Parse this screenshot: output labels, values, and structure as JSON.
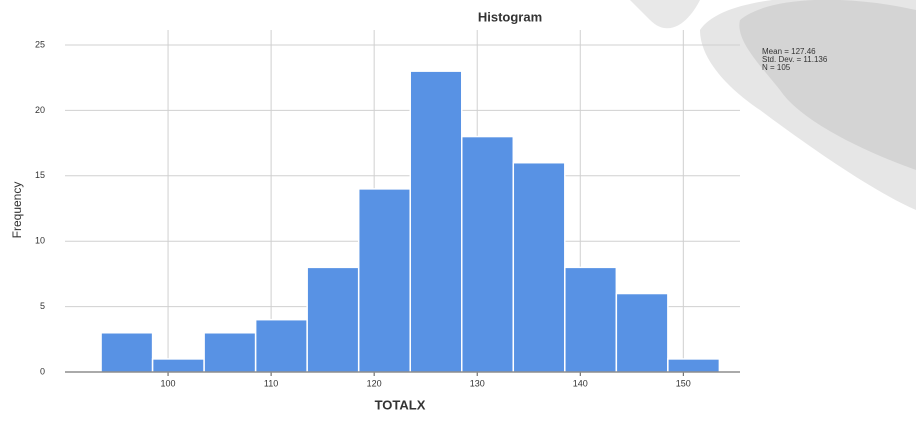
{
  "chart_data": {
    "type": "histogram",
    "title": "Histogram",
    "x_label": "TOTALX",
    "y_label": "Frequency",
    "bins": [
      93.5,
      98.5,
      103.5,
      108.5,
      113.5,
      118.5,
      123.5,
      128.5,
      133.5,
      138.5,
      143.5,
      148.5,
      153.5
    ],
    "counts": [
      3,
      1,
      3,
      4,
      8,
      14,
      23,
      18,
      16,
      8,
      6,
      1
    ],
    "color": "#5892e4",
    "xlim": [
      90,
      155.5
    ],
    "xticks": [
      100,
      110,
      120,
      130,
      140,
      150
    ],
    "ylim": [
      0,
      25
    ],
    "yticks": [
      0,
      5,
      10,
      15,
      20,
      25
    ],
    "grid": true,
    "annotations": [
      "Mean = 127.46",
      "Std. Dev. = 11.136",
      "N = 105"
    ]
  }
}
